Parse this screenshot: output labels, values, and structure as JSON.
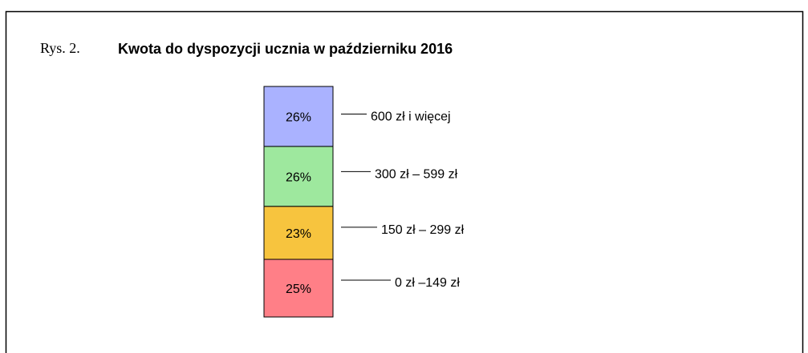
{
  "chart_data": {
    "type": "bar",
    "stacked": true,
    "figure_label": "Rys. 2.",
    "title": "Kwota do dyspozycji ucznia w październiku 2016",
    "categories": [
      null
    ],
    "ylim": [
      0,
      100
    ],
    "series": [
      {
        "name": "0 zł –149 zł",
        "color": "#ff7f87",
        "values": [
          25
        ],
        "value_labels": [
          "25%"
        ]
      },
      {
        "name": "150 zł – 299 zł",
        "color": "#f7c43e",
        "values": [
          23
        ],
        "value_labels": [
          "23%"
        ]
      },
      {
        "name": "300 zł – 599 zł",
        "color": "#9ee89e",
        "values": [
          26
        ],
        "value_labels": [
          "26%"
        ]
      },
      {
        "name": "600 zł i więcej",
        "color": "#aab2ff",
        "values": [
          26
        ],
        "value_labels": [
          "26%"
        ]
      }
    ]
  }
}
